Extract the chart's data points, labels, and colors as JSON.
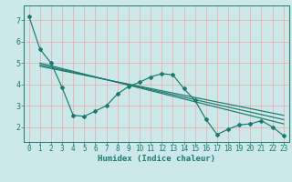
{
  "xlabel": "Humidex (Indice chaleur)",
  "bg_color": "#cce8e8",
  "grid_color_major": "#e8b0b0",
  "line_color": "#1a7a6e",
  "xlim": [
    -0.5,
    23.5
  ],
  "ylim": [
    1.3,
    7.7
  ],
  "yticks": [
    2,
    3,
    4,
    5,
    6,
    7
  ],
  "xticks": [
    0,
    1,
    2,
    3,
    4,
    5,
    6,
    7,
    8,
    9,
    10,
    11,
    12,
    13,
    14,
    15,
    16,
    17,
    18,
    19,
    20,
    21,
    22,
    23
  ],
  "zigzag_x": [
    0,
    1,
    2,
    3,
    4,
    5,
    6,
    7,
    8,
    9,
    10,
    11,
    12,
    13,
    14,
    15,
    16,
    17,
    18,
    19,
    20,
    21,
    22,
    23
  ],
  "zigzag_y": [
    7.2,
    5.65,
    5.0,
    3.85,
    2.55,
    2.5,
    2.75,
    3.0,
    3.55,
    3.9,
    4.1,
    4.35,
    4.5,
    4.45,
    3.8,
    3.25,
    2.35,
    1.65,
    1.9,
    2.1,
    2.15,
    2.3,
    2.0,
    1.6
  ],
  "trend1_x": [
    1,
    23
  ],
  "trend1_y": [
    5.0,
    2.15
  ],
  "trend2_x": [
    1,
    23
  ],
  "trend2_y": [
    4.85,
    2.55
  ],
  "trend3_x": [
    1,
    23
  ],
  "trend3_y": [
    4.92,
    2.35
  ],
  "xlabel_fontsize": 6.5,
  "tick_fontsize": 5.5
}
